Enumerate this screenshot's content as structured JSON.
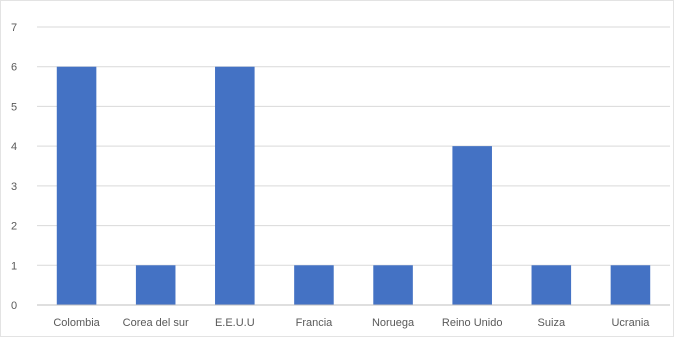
{
  "chart_data": {
    "type": "bar",
    "title": "",
    "xlabel": "",
    "ylabel": "",
    "categories": [
      "Colombia",
      "Corea del sur",
      "E.E.U.U",
      "Francia",
      "Noruega",
      "Reino Unido",
      "Suiza",
      "Ucrania"
    ],
    "values": [
      6,
      1,
      6,
      1,
      1,
      4,
      1,
      1
    ],
    "ylim": [
      0,
      7
    ],
    "yticks": [
      "0",
      "1",
      "2",
      "3",
      "4",
      "5",
      "6",
      "7"
    ],
    "grid": true,
    "legend": "none",
    "colors": {
      "bar": "#4472c4",
      "grid": "#d9d9d9",
      "axis": "#bfbfbf",
      "text": "#595959"
    }
  }
}
